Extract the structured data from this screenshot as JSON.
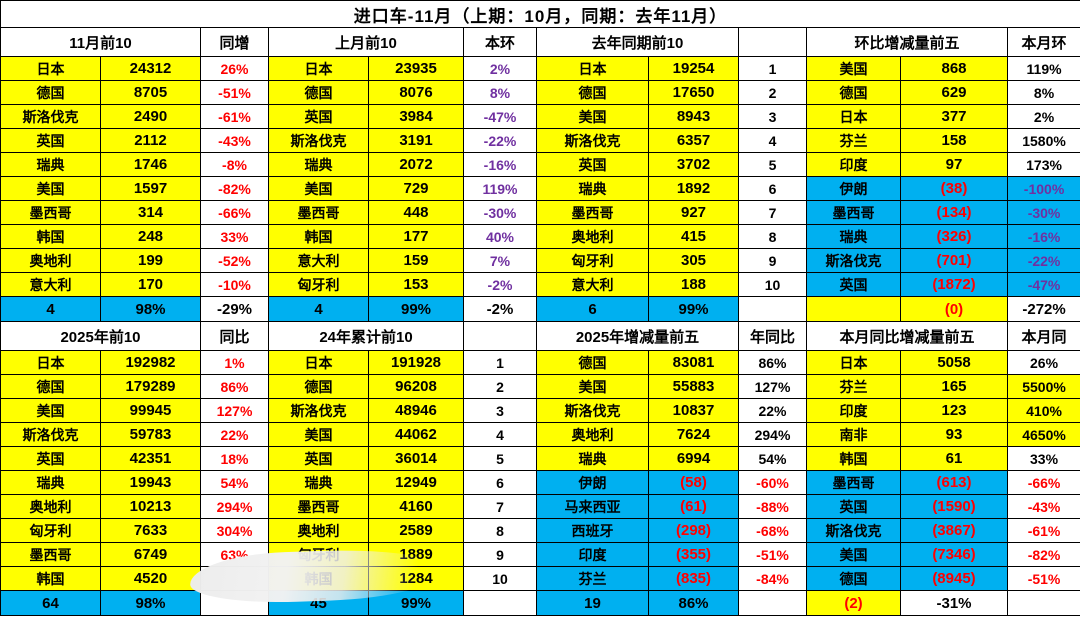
{
  "palette": {
    "highlight_yellow": "#FFFF00",
    "cyan_blue": "#00B0F0",
    "negative_red": "#FF0000",
    "ratio_purple": "#7030A0"
  },
  "chart_data": {
    "type": "table",
    "title": "进口车-11月（上期：10月，同期：去年11月）",
    "sections": [
      {
        "name": "month-top10",
        "groups": [
          {
            "header": "11月前10",
            "pct_header": "同增",
            "pct_style": "red",
            "rows": [
              {
                "c": "日本",
                "v": "24312",
                "p": "26%"
              },
              {
                "c": "德国",
                "v": "8705",
                "p": "-51%"
              },
              {
                "c": "斯洛伐克",
                "v": "2490",
                "p": "-61%"
              },
              {
                "c": "英国",
                "v": "2112",
                "p": "-43%"
              },
              {
                "c": "瑞典",
                "v": "1746",
                "p": "-8%"
              },
              {
                "c": "美国",
                "v": "1597",
                "p": "-82%"
              },
              {
                "c": "墨西哥",
                "v": "314",
                "p": "-66%"
              },
              {
                "c": "韩国",
                "v": "248",
                "p": "33%"
              },
              {
                "c": "奥地利",
                "v": "199",
                "p": "-52%"
              },
              {
                "c": "意大利",
                "v": "170",
                "p": "-10%"
              }
            ],
            "summary": {
              "values": [
                "4",
                "98%",
                "-29%"
              ],
              "styles": [
                "blue",
                "blue",
                "plain"
              ]
            }
          },
          {
            "header": "上月前10",
            "pct_header": "本环",
            "pct_style": "purple",
            "rows": [
              {
                "c": "日本",
                "v": "23935",
                "p": "2%"
              },
              {
                "c": "德国",
                "v": "8076",
                "p": "8%"
              },
              {
                "c": "英国",
                "v": "3984",
                "p": "-47%"
              },
              {
                "c": "斯洛伐克",
                "v": "3191",
                "p": "-22%"
              },
              {
                "c": "瑞典",
                "v": "2072",
                "p": "-16%"
              },
              {
                "c": "美国",
                "v": "729",
                "p": "119%"
              },
              {
                "c": "墨西哥",
                "v": "448",
                "p": "-30%"
              },
              {
                "c": "韩国",
                "v": "177",
                "p": "40%"
              },
              {
                "c": "意大利",
                "v": "159",
                "p": "7%"
              },
              {
                "c": "匈牙利",
                "v": "153",
                "p": "-2%"
              }
            ],
            "summary": {
              "values": [
                "4",
                "99%",
                "-2%"
              ],
              "styles": [
                "blue",
                "blue",
                "plain"
              ]
            }
          },
          {
            "header": "去年同期前10",
            "pct_header": "",
            "pct_style": "black",
            "rows": [
              {
                "c": "日本",
                "v": "19254",
                "p": "1"
              },
              {
                "c": "德国",
                "v": "17650",
                "p": "2"
              },
              {
                "c": "美国",
                "v": "8943",
                "p": "3"
              },
              {
                "c": "斯洛伐克",
                "v": "6357",
                "p": "4"
              },
              {
                "c": "英国",
                "v": "3702",
                "p": "5"
              },
              {
                "c": "瑞典",
                "v": "1892",
                "p": "6"
              },
              {
                "c": "墨西哥",
                "v": "927",
                "p": "7"
              },
              {
                "c": "奥地利",
                "v": "415",
                "p": "8"
              },
              {
                "c": "匈牙利",
                "v": "305",
                "p": "9"
              },
              {
                "c": "意大利",
                "v": "188",
                "p": "10"
              }
            ],
            "summary": {
              "values": [
                "6",
                "99%",
                ""
              ],
              "styles": [
                "blue",
                "blue",
                "plain"
              ]
            }
          },
          {
            "header": "环比增减量前五",
            "pct_header": "本月环",
            "pct_style": "black",
            "neg_pct_style": "purpleblue",
            "rows": [
              {
                "c": "美国",
                "v": "868",
                "p": "119%"
              },
              {
                "c": "德国",
                "v": "629",
                "p": "8%"
              },
              {
                "c": "日本",
                "v": "377",
                "p": "2%"
              },
              {
                "c": "芬兰",
                "v": "158",
                "p": "1580%"
              },
              {
                "c": "印度",
                "v": "97",
                "p": "173%"
              },
              {
                "c": "伊朗",
                "v": "(38)",
                "p": "-100%",
                "neg": true
              },
              {
                "c": "墨西哥",
                "v": "(134)",
                "p": "-30%",
                "neg": true
              },
              {
                "c": "瑞典",
                "v": "(326)",
                "p": "-16%",
                "neg": true
              },
              {
                "c": "斯洛伐克",
                "v": "(701)",
                "p": "-22%",
                "neg": true
              },
              {
                "c": "英国",
                "v": "(1872)",
                "p": "-47%",
                "neg": true
              }
            ],
            "summary": {
              "values": [
                "",
                "(0)",
                "-272%"
              ],
              "styles": [
                "yellow",
                "yellowred",
                "plain"
              ]
            }
          }
        ]
      },
      {
        "name": "ytd-top10",
        "groups": [
          {
            "header": "2025年前10",
            "pct_header": "同比",
            "pct_style": "red",
            "rows": [
              {
                "c": "日本",
                "v": "192982",
                "p": "1%"
              },
              {
                "c": "德国",
                "v": "179289",
                "p": "86%"
              },
              {
                "c": "美国",
                "v": "99945",
                "p": "127%"
              },
              {
                "c": "斯洛伐克",
                "v": "59783",
                "p": "22%"
              },
              {
                "c": "英国",
                "v": "42351",
                "p": "18%"
              },
              {
                "c": "瑞典",
                "v": "19943",
                "p": "54%"
              },
              {
                "c": "奥地利",
                "v": "10213",
                "p": "294%"
              },
              {
                "c": "匈牙利",
                "v": "7633",
                "p": "304%"
              },
              {
                "c": "墨西哥",
                "v": "6749",
                "p": "63%"
              },
              {
                "c": "韩国",
                "v": "4520",
                "p": ""
              }
            ],
            "summary": {
              "values": [
                "64",
                "98%",
                ""
              ],
              "styles": [
                "blue",
                "blue",
                "plain"
              ]
            }
          },
          {
            "header": "24年累计前10",
            "pct_header": "",
            "pct_style": "black",
            "rows": [
              {
                "c": "日本",
                "v": "191928",
                "p": "1"
              },
              {
                "c": "德国",
                "v": "96208",
                "p": "2"
              },
              {
                "c": "斯洛伐克",
                "v": "48946",
                "p": "3"
              },
              {
                "c": "美国",
                "v": "44062",
                "p": "4"
              },
              {
                "c": "英国",
                "v": "36014",
                "p": "5"
              },
              {
                "c": "瑞典",
                "v": "12949",
                "p": "6"
              },
              {
                "c": "墨西哥",
                "v": "4160",
                "p": "7"
              },
              {
                "c": "奥地利",
                "v": "2589",
                "p": "8"
              },
              {
                "c": "匈牙利",
                "v": "1889",
                "p": "9"
              },
              {
                "c": "韩国",
                "v": "1284",
                "p": "10"
              }
            ],
            "summary": {
              "values": [
                "45",
                "99%",
                ""
              ],
              "styles": [
                "blue",
                "blue",
                "plain"
              ]
            }
          },
          {
            "header": "2025年增减量前五",
            "pct_header": "年同比",
            "pct_style": "black",
            "neg_pct_style": "red",
            "rows": [
              {
                "c": "德国",
                "v": "83081",
                "p": "86%"
              },
              {
                "c": "美国",
                "v": "55883",
                "p": "127%"
              },
              {
                "c": "斯洛伐克",
                "v": "10837",
                "p": "22%"
              },
              {
                "c": "奥地利",
                "v": "7624",
                "p": "294%"
              },
              {
                "c": "瑞典",
                "v": "6994",
                "p": "54%"
              },
              {
                "c": "伊朗",
                "v": "(58)",
                "p": "-60%",
                "neg": true
              },
              {
                "c": "马来西亚",
                "v": "(61)",
                "p": "-88%",
                "neg": true
              },
              {
                "c": "西班牙",
                "v": "(298)",
                "p": "-68%",
                "neg": true
              },
              {
                "c": "印度",
                "v": "(355)",
                "p": "-51%",
                "neg": true
              },
              {
                "c": "芬兰",
                "v": "(835)",
                "p": "-84%",
                "neg": true
              }
            ],
            "summary": {
              "values": [
                "19",
                "86%",
                ""
              ],
              "styles": [
                "blue",
                "blue",
                "plain"
              ]
            }
          },
          {
            "header": "本月同比增减量前五",
            "pct_header": "本月同",
            "pct_style": "black",
            "neg_pct_style": "red",
            "rows": [
              {
                "c": "日本",
                "v": "5058",
                "p": "26%"
              },
              {
                "c": "芬兰",
                "v": "165",
                "p": "5500%",
                "hl": true
              },
              {
                "c": "印度",
                "v": "123",
                "p": "410%",
                "hl": true
              },
              {
                "c": "南非",
                "v": "93",
                "p": "4650%",
                "hl": true
              },
              {
                "c": "韩国",
                "v": "61",
                "p": "33%"
              },
              {
                "c": "墨西哥",
                "v": "(613)",
                "p": "-66%",
                "neg": true
              },
              {
                "c": "英国",
                "v": "(1590)",
                "p": "-43%",
                "neg": true
              },
              {
                "c": "斯洛伐克",
                "v": "(3867)",
                "p": "-61%",
                "neg": true
              },
              {
                "c": "美国",
                "v": "(7346)",
                "p": "-82%",
                "neg": true
              },
              {
                "c": "德国",
                "v": "(8945)",
                "p": "-51%",
                "neg": true
              }
            ],
            "summary": {
              "values": [
                "(2)",
                "-31%",
                ""
              ],
              "styles": [
                "yellowred",
                "plain",
                "plain"
              ]
            }
          }
        ]
      }
    ]
  }
}
